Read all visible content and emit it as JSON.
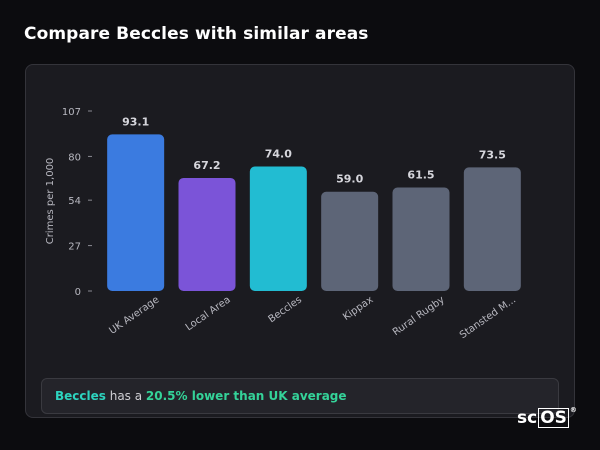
{
  "title": "Compare Beccles with similar areas",
  "chart_data": {
    "type": "bar",
    "ylabel": "Crimes per 1,000",
    "xlabel": "",
    "ylim": [
      0,
      107
    ],
    "yticks": [
      0,
      27,
      54,
      80,
      107
    ],
    "categories": [
      "UK Average",
      "Local Area",
      "Beccles",
      "Kippax",
      "Rural Rugby",
      "Stansted M..."
    ],
    "values": [
      93.1,
      67.2,
      74.0,
      59.0,
      61.5,
      73.5
    ],
    "value_labels": [
      "93.1",
      "67.2",
      "74.0",
      "59.0",
      "61.5",
      "73.5"
    ],
    "colors": [
      "#3b7be0",
      "#7b54d8",
      "#22bcd2",
      "#5d6577",
      "#5d6577",
      "#5d6577"
    ],
    "grid": false,
    "legend": "none"
  },
  "summary": {
    "place": "Beccles",
    "middle": " has a ",
    "delta": "20.5% lower than UK average"
  },
  "brand": {
    "prefix": "sc",
    "boxed": "OS",
    "mark": "®"
  }
}
